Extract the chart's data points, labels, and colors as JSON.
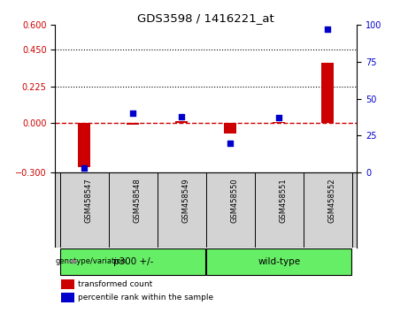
{
  "title": "GDS3598 / 1416221_at",
  "samples": [
    "GSM458547",
    "GSM458548",
    "GSM458549",
    "GSM458550",
    "GSM458551",
    "GSM458552"
  ],
  "transformed_count": [
    -0.27,
    -0.008,
    0.012,
    -0.065,
    0.01,
    0.37
  ],
  "percentile_rank": [
    3,
    40,
    38,
    20,
    37,
    97
  ],
  "group_defs": [
    {
      "label": "p300 +/-",
      "start": 0,
      "end": 2
    },
    {
      "label": "wild-type",
      "start": 3,
      "end": 5
    }
  ],
  "group_label_prefix": "genotype/variation",
  "ylim_left": [
    -0.3,
    0.6
  ],
  "ylim_right": [
    0,
    100
  ],
  "yticks_left": [
    -0.3,
    0.0,
    0.225,
    0.45,
    0.6
  ],
  "yticks_right": [
    0,
    25,
    50,
    75,
    100
  ],
  "hlines": [
    0.225,
    0.45
  ],
  "bar_color": "#CC0000",
  "dot_color": "#0000CC",
  "zero_line_color": "#CC0000",
  "zero_line_style": "--",
  "hline_style": ":",
  "hline_color": "black",
  "background_color": "#ffffff",
  "plot_bg_color": "#ffffff",
  "xlab_bg_color": "#d3d3d3",
  "green_color": "#66ee66",
  "tick_label_color_left": "#CC0000",
  "tick_label_color_right": "#0000CC",
  "legend_items": [
    "transformed count",
    "percentile rank within the sample"
  ],
  "legend_colors": [
    "#CC0000",
    "#0000CC"
  ],
  "bar_width": 0.25
}
